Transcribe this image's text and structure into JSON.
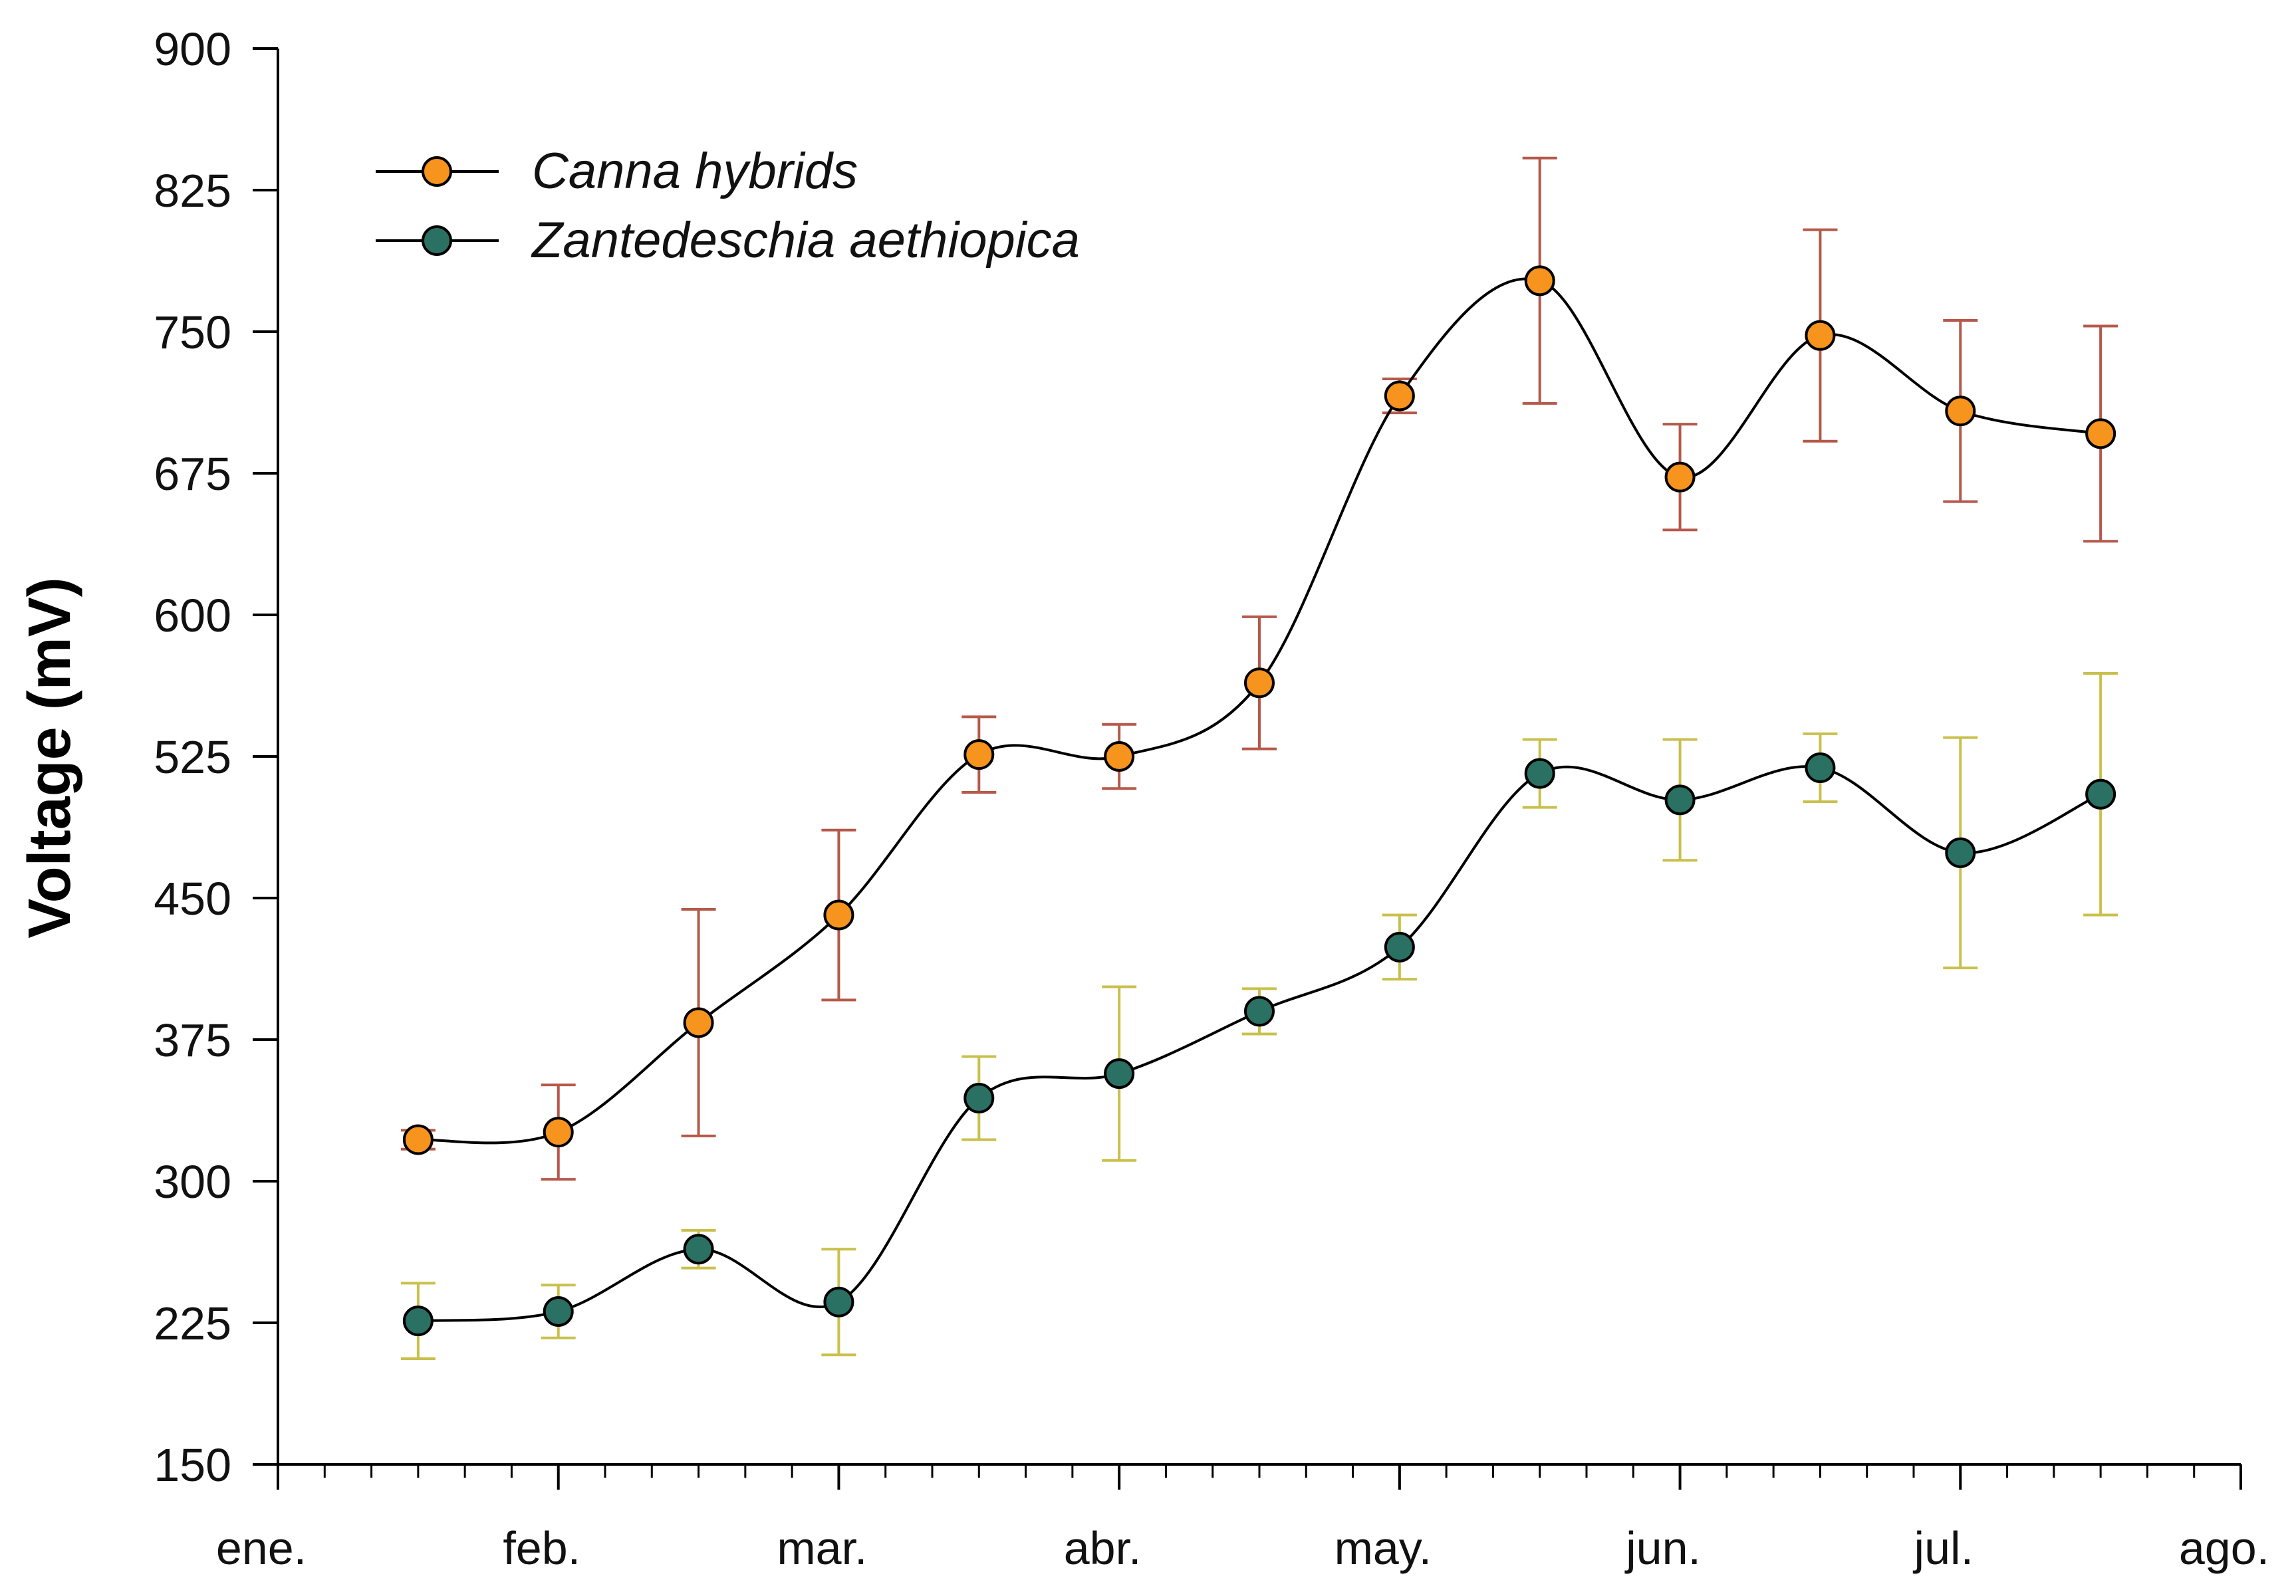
{
  "chart_data": {
    "type": "line",
    "title": "",
    "xlabel": "",
    "ylabel": "Voltage (mV)",
    "ylim": [
      150,
      900
    ],
    "yticks": [
      150,
      225,
      300,
      375,
      450,
      525,
      600,
      675,
      750,
      825,
      900
    ],
    "xlim": [
      0,
      7
    ],
    "month_labels": [
      "ene.",
      "feb.",
      "mar.",
      "abr.",
      "may.",
      "jun.",
      "jul.",
      "ago."
    ],
    "x": [
      0.5,
      1.0,
      1.5,
      2.0,
      2.5,
      3.0,
      3.5,
      4.0,
      4.5,
      5.0,
      5.5,
      6.0,
      6.5
    ],
    "series": [
      {
        "name": "Canna hybrids",
        "marker_color": "#f7941d",
        "error_color": "#b5594a",
        "values": [
          322,
          326,
          384,
          441,
          526,
          525,
          564,
          716,
          777,
          673,
          748,
          708,
          696
        ],
        "errors": [
          5,
          25,
          60,
          45,
          20,
          17,
          35,
          9,
          65,
          28,
          56,
          48,
          57
        ]
      },
      {
        "name": "Zantedeschia aethiopica",
        "marker_color": "#2a7163",
        "error_color": "#c9c04c",
        "values": [
          226,
          231,
          264,
          236,
          344,
          357,
          390,
          424,
          516,
          502,
          519,
          474,
          505
        ],
        "errors": [
          20,
          14,
          10,
          28,
          22,
          46,
          12,
          17,
          18,
          32,
          18,
          61,
          64
        ]
      }
    ],
    "legend_position": "top-left"
  }
}
